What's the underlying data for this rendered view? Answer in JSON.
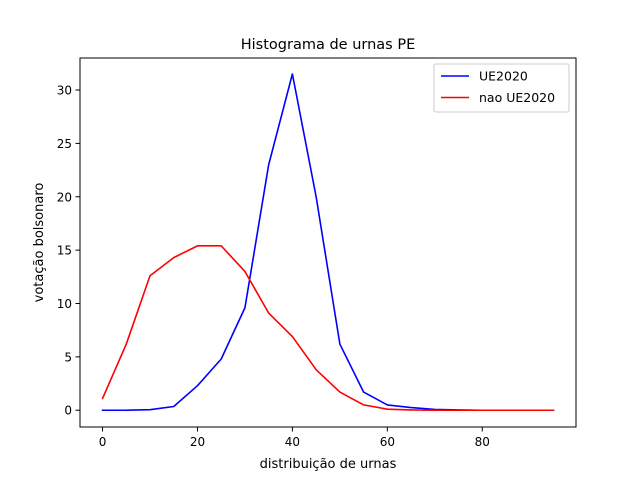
{
  "chart_data": {
    "type": "line",
    "title": "Histograma de urnas PE",
    "xlabel": "distribuição de urnas",
    "ylabel": "votação bolsonaro",
    "xlim": [
      -4.75,
      99.75
    ],
    "ylim": [
      -1.57,
      33.0
    ],
    "xticks": [
      0,
      20,
      40,
      60,
      80
    ],
    "yticks": [
      0,
      5,
      10,
      15,
      20,
      25,
      30
    ],
    "grid": false,
    "legend_position": "top-right",
    "x": [
      0,
      5,
      10,
      15,
      20,
      25,
      30,
      35,
      40,
      45,
      50,
      55,
      60,
      65,
      70,
      75,
      80,
      85,
      90,
      95
    ],
    "series": [
      {
        "name": "UE2020",
        "color": "#0000ff",
        "values": [
          0.0,
          0.0,
          0.05,
          0.35,
          2.3,
          4.8,
          9.6,
          23.0,
          31.5,
          20.0,
          6.2,
          1.7,
          0.5,
          0.25,
          0.08,
          0.03,
          0.0,
          0.0,
          0.0,
          0.0
        ]
      },
      {
        "name": "nao UE2020",
        "color": "#ff0000",
        "values": [
          1.1,
          6.2,
          12.6,
          14.3,
          15.4,
          15.4,
          13.0,
          9.1,
          6.9,
          3.8,
          1.7,
          0.5,
          0.1,
          0.03,
          0.0,
          0.0,
          0.0,
          0.0,
          0.0,
          0.0
        ]
      }
    ]
  }
}
